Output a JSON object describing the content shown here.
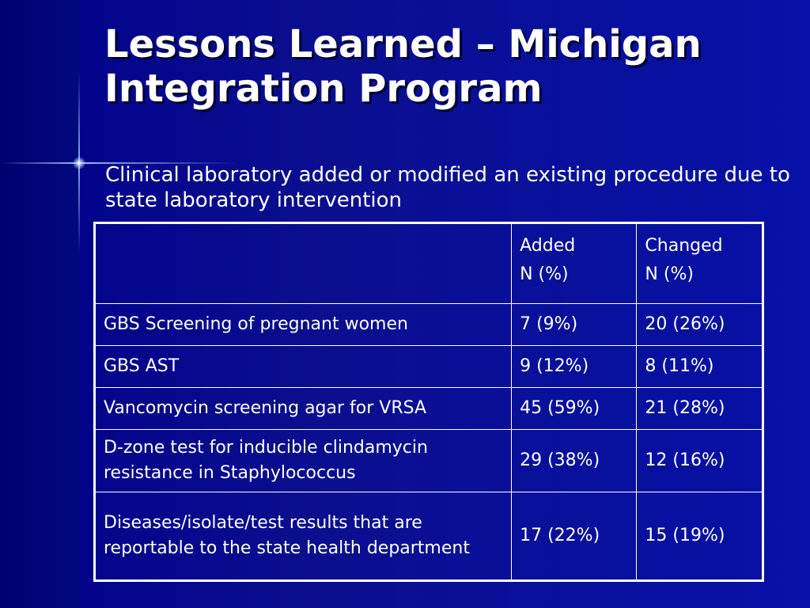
{
  "slide": {
    "title": "Lessons Learned – Michigan Integration Program",
    "subtitle": "Clinical laboratory added or modified an existing procedure due to state laboratory intervention"
  },
  "table": {
    "header": {
      "col1": "",
      "added_line1": "Added",
      "added_line2": "N (%)",
      "changed_line1": "Changed",
      "changed_line2": "N (%)"
    },
    "rows": [
      {
        "procedure": "GBS Screening of pregnant women",
        "added": "7 (9%)",
        "changed": "20 (26%)"
      },
      {
        "procedure": "GBS AST",
        "added": "9 (12%)",
        "changed": "8 (11%)"
      },
      {
        "procedure": "Vancomycin screening agar for VRSA",
        "added": "45 (59%)",
        "changed": "21 (28%)"
      },
      {
        "procedure": "D-zone test for inducible clindamycin resistance in Staphylococcus",
        "added": "29 (38%)",
        "changed": "12 (16%)"
      },
      {
        "procedure": "Diseases/isolate/test results that are reportable to the state health department",
        "added": "17 (22%)",
        "changed": "15 (19%)"
      }
    ]
  },
  "colors": {
    "background": "#0a0f8f",
    "text": "#ffffff",
    "border": "#ffffff"
  }
}
